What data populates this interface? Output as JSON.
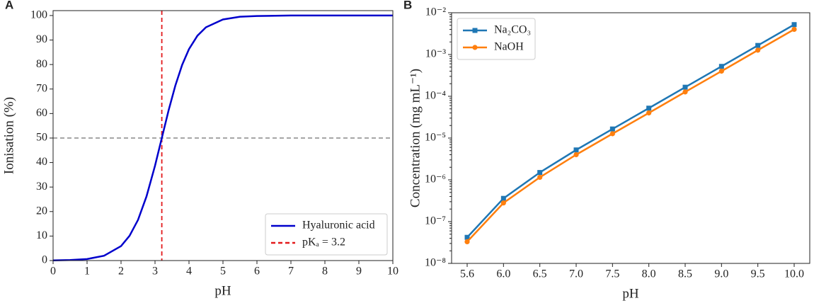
{
  "chart_data": [
    {
      "type": "line",
      "panel_label": "A",
      "xlabel": "pH",
      "ylabel": "Ionisation (%)",
      "x": [
        0,
        0.5,
        1,
        1.5,
        2,
        2.25,
        2.5,
        2.75,
        3,
        3.2,
        3.4,
        3.6,
        3.8,
        4,
        4.25,
        4.5,
        5,
        5.5,
        6,
        7,
        8,
        9,
        10
      ],
      "series": [
        {
          "name": "Hyaluronic acid",
          "color": "#0000cc",
          "values": [
            0.06,
            0.2,
            0.63,
            1.96,
            5.9,
            10.1,
            16.6,
            26.2,
            38.7,
            50,
            61.3,
            71.5,
            79.9,
            86.3,
            91.8,
            95.2,
            98.4,
            99.5,
            99.8,
            100,
            100,
            100,
            100
          ]
        }
      ],
      "reference_lines": [
        {
          "name": "pKₐ = 3.2",
          "axis": "x",
          "value": 3.2,
          "color": "#e31a1c"
        },
        {
          "axis": "y",
          "value": 50,
          "color": "#a0a0a0"
        }
      ],
      "xlim": [
        0,
        10
      ],
      "xticks": [
        0,
        1,
        2,
        3,
        4,
        5,
        6,
        7,
        8,
        9,
        10
      ],
      "ylim": [
        0,
        102
      ],
      "yticks": [
        0,
        10,
        20,
        30,
        40,
        50,
        60,
        70,
        80,
        90,
        100
      ],
      "legend": "lower right"
    },
    {
      "type": "line",
      "panel_label": "B",
      "xlabel": "pH",
      "ylabel": "Concentration (mg mL⁻¹)",
      "categories": [
        "5.6",
        "6.0",
        "6.5",
        "7.0",
        "7.5",
        "8.0",
        "8.5",
        "9.0",
        "9.5",
        "10.0"
      ],
      "series": [
        {
          "name": "Na₂CO₃",
          "color": "#1f77b4",
          "marker": "square",
          "values": [
            4.2e-08,
            3.6e-07,
            1.5e-06,
            5.2e-06,
            1.65e-05,
            5.2e-05,
            0.000165,
            0.00052,
            0.00165,
            0.0052
          ]
        },
        {
          "name": "NaOH",
          "color": "#ff7f0e",
          "marker": "circle",
          "values": [
            3.3e-08,
            2.8e-07,
            1.15e-06,
            4e-06,
            1.27e-05,
            4e-05,
            0.000127,
            0.0004,
            0.00127,
            0.004
          ]
        }
      ],
      "log_y": true,
      "ylim": [
        1e-08,
        0.01
      ],
      "yticks": [
        {
          "value": 1e-08,
          "label": "10⁻⁸"
        },
        {
          "value": 1e-07,
          "label": "10⁻⁷"
        },
        {
          "value": 1e-06,
          "label": "10⁻⁶"
        },
        {
          "value": 1e-05,
          "label": "10⁻⁵"
        },
        {
          "value": 0.0001,
          "label": "10⁻⁴"
        },
        {
          "value": 0.001,
          "label": "10⁻³"
        },
        {
          "value": 0.01,
          "label": "10⁻²"
        }
      ],
      "legend": "upper left"
    }
  ]
}
